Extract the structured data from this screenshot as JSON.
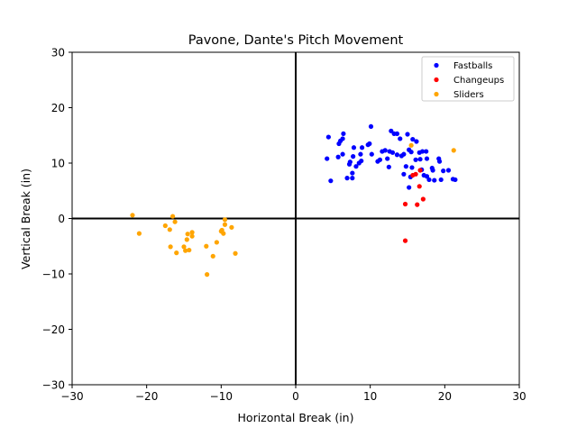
{
  "chart_data": {
    "type": "scatter",
    "title": "Pavone, Dante's Pitch Movement",
    "xlabel": "Horizontal Break (in)",
    "ylabel": "Vertical Break (in)",
    "xlim": [
      -30,
      30
    ],
    "ylim": [
      -30,
      30
    ],
    "xticks": [
      -30,
      -20,
      -10,
      0,
      10,
      20,
      30
    ],
    "yticks": [
      -30,
      -20,
      -10,
      0,
      10,
      20,
      30
    ],
    "xtick_labels": [
      "−30",
      "−20",
      "−10",
      "0",
      "10",
      "20",
      "30"
    ],
    "ytick_labels": [
      "−30",
      "−20",
      "−10",
      "0",
      "10",
      "20",
      "30"
    ],
    "grid": false,
    "reference_lines": {
      "x": 0,
      "y": 0
    },
    "legend": {
      "position": "upper right",
      "entries": [
        "Fastballs",
        "Changeups",
        "Sliders"
      ]
    },
    "series": [
      {
        "name": "Fastballs",
        "color": "#0000ff",
        "points": [
          [
            4.2,
            10.8
          ],
          [
            4.4,
            14.7
          ],
          [
            4.7,
            6.8
          ],
          [
            5.7,
            11.1
          ],
          [
            5.8,
            13.5
          ],
          [
            6.0,
            14.0
          ],
          [
            6.3,
            11.6
          ],
          [
            6.4,
            15.3
          ],
          [
            6.3,
            14.4
          ],
          [
            6.9,
            7.3
          ],
          [
            7.3,
            10.2
          ],
          [
            7.2,
            9.8
          ],
          [
            7.6,
            7.3
          ],
          [
            7.6,
            8.2
          ],
          [
            7.7,
            11.2
          ],
          [
            7.8,
            12.8
          ],
          [
            8.1,
            9.4
          ],
          [
            8.5,
            10.0
          ],
          [
            8.8,
            10.4
          ],
          [
            8.7,
            11.6
          ],
          [
            8.9,
            12.8
          ],
          [
            9.9,
            13.5
          ],
          [
            10.1,
            16.6
          ],
          [
            10.2,
            11.6
          ],
          [
            9.7,
            13.3
          ],
          [
            11.0,
            10.3
          ],
          [
            11.3,
            10.6
          ],
          [
            11.6,
            12.1
          ],
          [
            12.0,
            12.3
          ],
          [
            12.6,
            12.1
          ],
          [
            12.8,
            15.8
          ],
          [
            13.0,
            11.9
          ],
          [
            12.5,
            9.3
          ],
          [
            12.3,
            10.8
          ],
          [
            13.2,
            15.3
          ],
          [
            13.6,
            15.3
          ],
          [
            13.6,
            11.5
          ],
          [
            14.0,
            14.4
          ],
          [
            14.2,
            11.3
          ],
          [
            14.5,
            11.6
          ],
          [
            14.5,
            8.0
          ],
          [
            14.8,
            9.4
          ],
          [
            15.0,
            15.2
          ],
          [
            15.2,
            5.6
          ],
          [
            15.2,
            12.4
          ],
          [
            15.5,
            12.0
          ],
          [
            15.6,
            9.2
          ],
          [
            15.7,
            14.3
          ],
          [
            16.2,
            13.9
          ],
          [
            16.1,
            10.6
          ],
          [
            16.6,
            11.9
          ],
          [
            16.7,
            10.7
          ],
          [
            16.9,
            8.8
          ],
          [
            17.0,
            12.1
          ],
          [
            17.5,
            12.1
          ],
          [
            17.6,
            10.8
          ],
          [
            17.6,
            7.6
          ],
          [
            17.9,
            7.0
          ],
          [
            18.3,
            9.1
          ],
          [
            18.4,
            8.7
          ],
          [
            18.6,
            6.9
          ],
          [
            19.2,
            10.8
          ],
          [
            19.3,
            10.3
          ],
          [
            19.5,
            7.0
          ],
          [
            19.8,
            8.6
          ],
          [
            20.5,
            8.7
          ],
          [
            21.1,
            7.1
          ],
          [
            21.4,
            7.0
          ],
          [
            17.2,
            7.8
          ],
          [
            15.4,
            7.5
          ]
        ]
      },
      {
        "name": "Changeups",
        "color": "#ff0000",
        "points": [
          [
            14.7,
            -4.0
          ],
          [
            14.7,
            2.6
          ],
          [
            15.7,
            7.8
          ],
          [
            16.1,
            8.0
          ],
          [
            16.3,
            2.5
          ],
          [
            16.7,
            8.7
          ],
          [
            16.6,
            5.8
          ],
          [
            17.1,
            3.5
          ]
        ]
      },
      {
        "name": "Sliders",
        "color": "#ffa500",
        "points": [
          [
            -21.9,
            0.6
          ],
          [
            -21.0,
            -2.7
          ],
          [
            -17.5,
            -1.3
          ],
          [
            -16.9,
            -2.0
          ],
          [
            -16.8,
            -5.1
          ],
          [
            -16.5,
            0.4
          ],
          [
            -16.2,
            -0.6
          ],
          [
            -16.0,
            -6.2
          ],
          [
            -15.0,
            -5.1
          ],
          [
            -14.8,
            -5.8
          ],
          [
            -14.6,
            -3.8
          ],
          [
            -14.5,
            -2.8
          ],
          [
            -14.3,
            -5.7
          ],
          [
            -13.9,
            -3.2
          ],
          [
            -13.9,
            -2.5
          ],
          [
            -12.0,
            -5.0
          ],
          [
            -11.9,
            -10.1
          ],
          [
            -11.1,
            -6.8
          ],
          [
            -10.6,
            -4.3
          ],
          [
            -10.0,
            -2.3
          ],
          [
            -9.9,
            -2.1
          ],
          [
            -9.7,
            -2.7
          ],
          [
            -9.5,
            -0.2
          ],
          [
            -9.5,
            -1.1
          ],
          [
            -8.6,
            -1.6
          ],
          [
            -8.1,
            -6.3
          ],
          [
            15.5,
            13.2
          ],
          [
            21.2,
            12.3
          ]
        ]
      }
    ]
  }
}
